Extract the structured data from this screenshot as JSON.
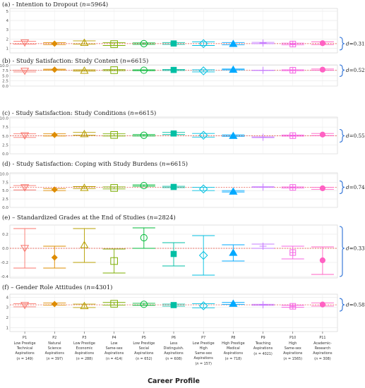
{
  "chart_data": {
    "type": "scatter",
    "xlabel": "Career Profile",
    "categories": [
      {
        "code": "P1",
        "lines": [
          "Low Prestige",
          "Technical",
          "Aspirations"
        ],
        "n": "(n = 149)",
        "color": "#F8766D",
        "marker": "triangle-down-open"
      },
      {
        "code": "P2",
        "lines": [
          "Natural",
          "Science",
          "Aspirations"
        ],
        "n": "(n = 397)",
        "color": "#DE8C00",
        "marker": "diamond-filled"
      },
      {
        "code": "P3",
        "lines": [
          "Low Prestige",
          "Economic",
          "Aspirations"
        ],
        "n": "(n = 288)",
        "color": "#B79F00",
        "marker": "triangle-up-open"
      },
      {
        "code": "P4",
        "lines": [
          "Low",
          "Same-sex",
          "Aspirations"
        ],
        "n": "(n = 414)",
        "color": "#7CAE00",
        "marker": "square-open"
      },
      {
        "code": "P5",
        "lines": [
          "Low Prestige",
          "Social",
          "Aspirations"
        ],
        "n": "(n = 652)",
        "color": "#00BA38",
        "marker": "circle-open"
      },
      {
        "code": "P6",
        "lines": [
          "Less",
          "Distinguish.",
          "Aspirations"
        ],
        "n": "(n = 608)",
        "color": "#00BFA4",
        "marker": "square-filled"
      },
      {
        "code": "P7",
        "lines": [
          "Low Prestige",
          "High",
          "Same-sex",
          "Aspirations"
        ],
        "n": "(n = 157)",
        "color": "#00BFE0",
        "marker": "diamond-open"
      },
      {
        "code": "P8",
        "lines": [
          "High Prestige",
          "Medical",
          "Aspirations"
        ],
        "n": "(n = 718)",
        "color": "#00A9FF",
        "marker": "triangle-up-filled"
      },
      {
        "code": "P9",
        "lines": [
          "Teaching",
          "Aspirations"
        ],
        "n": "(n = 4021)",
        "color": "#C77CFF",
        "marker": "plus"
      },
      {
        "code": "P10",
        "lines": [
          "High",
          "Same-sex",
          "Aspirations"
        ],
        "n": "(n = 1565)",
        "color": "#F564E3",
        "marker": "square-cross"
      },
      {
        "code": "P11",
        "lines": [
          "Academic-",
          "Research",
          "Aspirations"
        ],
        "n": "(n = 308)",
        "color": "#FF61C3",
        "marker": "circle-filled"
      }
    ],
    "panels": [
      {
        "title": "(a) - Intention to Dropout (n=5964)",
        "ylim": [
          0.5,
          5.3
        ],
        "yticks": [
          "1",
          "2",
          "3",
          "4",
          "5"
        ],
        "reference": 1.5,
        "effect_label": "d=0.318",
        "values": [
          1.6,
          1.5,
          1.62,
          1.45,
          1.5,
          1.52,
          1.5,
          1.5,
          1.57,
          1.46,
          1.55
        ],
        "lower": [
          1.45,
          1.4,
          1.45,
          1.3,
          1.42,
          1.42,
          1.3,
          1.38,
          1.5,
          1.37,
          1.4
        ],
        "upper": [
          1.75,
          1.6,
          1.8,
          1.6,
          1.58,
          1.62,
          1.7,
          1.62,
          1.64,
          1.55,
          1.7
        ]
      },
      {
        "title": "(b) - Study Satisfaction: Study Content (n=6615)",
        "ylim": [
          0,
          10.3
        ],
        "yticks": [
          "0.0",
          "2.5",
          "5.0",
          "7.5",
          "10.0"
        ],
        "reference": 7.75,
        "effect_label": "d=0.522",
        "values": [
          7.3,
          8.0,
          7.6,
          7.75,
          7.7,
          7.85,
          7.4,
          8.1,
          7.65,
          7.7,
          8.0
        ],
        "lower": [
          6.9,
          7.8,
          7.3,
          7.5,
          7.5,
          7.6,
          6.9,
          7.9,
          7.6,
          7.5,
          7.7
        ],
        "upper": [
          7.7,
          8.2,
          7.9,
          8.0,
          7.9,
          8.1,
          7.9,
          8.3,
          7.7,
          7.9,
          8.3
        ]
      },
      {
        "title": "(c) - Study Satisfaction: Study Conditions (n=6615)",
        "ylim": [
          0,
          10.3
        ],
        "yticks": [
          "0.0",
          "2.5",
          "5.0",
          "7.5",
          "10.0"
        ],
        "reference": 5.05,
        "effect_label": "d=0.559",
        "values": [
          5.1,
          5.3,
          5.6,
          5.3,
          5.2,
          5.7,
          5.2,
          5.1,
          4.65,
          5.1,
          5.4
        ],
        "lower": [
          4.6,
          5.0,
          5.2,
          5.0,
          5.0,
          5.4,
          4.7,
          4.9,
          4.55,
          4.95,
          5.1
        ],
        "upper": [
          5.6,
          5.6,
          6.0,
          5.6,
          5.4,
          6.0,
          5.7,
          5.3,
          4.75,
          5.25,
          5.7
        ]
      },
      {
        "title": "(d) - Study Satisfaction: Coping with Study Burdens (n=6615)",
        "ylim": [
          0,
          10.3
        ],
        "yticks": [
          "0.0",
          "2.5",
          "5.0",
          "7.5",
          "10.0"
        ],
        "reference": 6.0,
        "effect_label": "d=0.745",
        "values": [
          5.9,
          5.3,
          5.9,
          5.8,
          6.5,
          6.1,
          5.5,
          4.8,
          6.05,
          5.95,
          5.7
        ],
        "lower": [
          5.2,
          5.0,
          5.6,
          5.5,
          6.3,
          5.9,
          5.0,
          4.6,
          5.95,
          5.8,
          5.4
        ],
        "upper": [
          6.5,
          5.6,
          6.2,
          6.1,
          6.7,
          6.3,
          6.0,
          5.0,
          6.15,
          6.1,
          6.0
        ]
      },
      {
        "title": "(e) – Standardized Grades at the End of Studies (n=2824)",
        "ylim": [
          -0.42,
          0.33
        ],
        "yticks": [
          "-0.4",
          "-0.2",
          "0.0",
          "0.2"
        ],
        "reference": 0.0,
        "effect_label": "d=0.338",
        "values": [
          0.0,
          -0.13,
          0.05,
          -0.18,
          0.15,
          -0.08,
          -0.1,
          -0.06,
          0.03,
          -0.06,
          -0.17
        ],
        "lower": [
          -0.28,
          -0.28,
          -0.2,
          -0.35,
          -0.0,
          -0.25,
          -0.38,
          -0.18,
          -0.0,
          -0.15,
          -0.37
        ],
        "upper": [
          0.28,
          0.03,
          0.28,
          -0.01,
          0.29,
          0.08,
          0.18,
          0.05,
          0.06,
          0.03,
          0.02
        ]
      },
      {
        "title": "(f) – Gender Role Attitudes (n=4301)",
        "ylim": [
          0.6,
          4.3
        ],
        "yticks": [
          "1",
          "2",
          "3",
          "4"
        ],
        "reference": 3.25,
        "effect_label": "d=0.585",
        "values": [
          3.2,
          3.32,
          3.15,
          3.35,
          3.3,
          3.22,
          3.15,
          3.38,
          3.25,
          3.1,
          3.28
        ],
        "lower": [
          3.05,
          3.22,
          2.98,
          3.22,
          3.2,
          3.12,
          2.95,
          3.28,
          3.2,
          3.0,
          3.12
        ],
        "upper": [
          3.35,
          3.42,
          3.32,
          3.48,
          3.4,
          3.32,
          3.35,
          3.48,
          3.3,
          3.2,
          3.44
        ]
      }
    ]
  }
}
